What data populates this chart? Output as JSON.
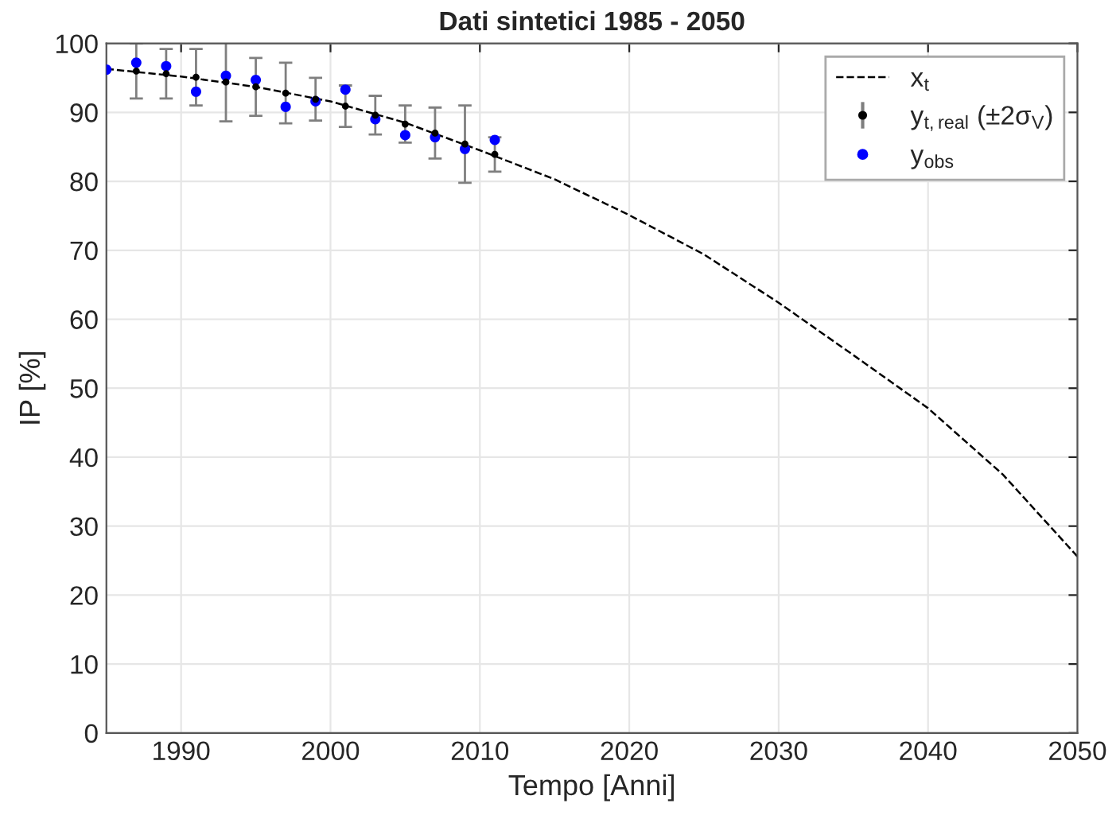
{
  "chart_data": {
    "type": "line",
    "title": "Dati sintetici 1985 - 2050",
    "xlabel": "Tempo [Anni]",
    "ylabel": "IP [%]",
    "xlim": [
      1985,
      2050
    ],
    "xticks": [
      1990,
      2000,
      2010,
      2020,
      2030,
      2040,
      2050
    ],
    "ylim": [
      0,
      100
    ],
    "yticks": [
      0,
      10,
      20,
      30,
      40,
      50,
      60,
      70,
      80,
      90,
      100
    ],
    "grid": true,
    "legend": "top right",
    "series": [
      {
        "name": "x$_{t}$",
        "color": "#000000",
        "line_style": "dashed",
        "marker": "none",
        "x": [
          1985,
          1990,
          1995,
          2000,
          2005,
          2010,
          2015,
          2020,
          2025,
          2030,
          2035,
          2040,
          2045,
          2050
        ],
        "values": [
          96.3,
          95.2,
          93.7,
          91.6,
          88.5,
          84.5,
          80.3,
          75.1,
          69.4,
          62.4,
          54.8,
          47.1,
          37.5,
          25.6
        ]
      },
      {
        "name": "y$_{t,real}$ (±2σ$_{V}$)",
        "type": "scatter",
        "color": "#000000",
        "marker": "circle",
        "x": [
          1987,
          1989,
          1991,
          1993,
          1995,
          1997,
          1999,
          2001,
          2003,
          2005,
          2007,
          2009,
          2011
        ],
        "values": [
          96.0,
          95.6,
          95.1,
          94.4,
          93.7,
          92.8,
          91.9,
          90.9,
          89.6,
          88.3,
          87.0,
          85.4,
          83.9
        ],
        "errors": [
          4.0,
          3.6,
          4.1,
          5.7,
          4.2,
          4.4,
          3.1,
          3.0,
          2.8,
          2.7,
          3.7,
          5.6,
          2.5
        ]
      },
      {
        "name": "y$_{obs}$",
        "type": "scatter",
        "color": "#0000ff",
        "marker": "circle",
        "x": [
          1985,
          1987,
          1989,
          1991,
          1993,
          1995,
          1997,
          1999,
          2001,
          2003,
          2005,
          2007,
          2009,
          2011
        ],
        "values": [
          96.2,
          97.2,
          96.7,
          93.0,
          95.3,
          94.7,
          90.8,
          91.6,
          93.3,
          89.0,
          86.7,
          86.4,
          84.7,
          86.0
        ]
      }
    ]
  }
}
